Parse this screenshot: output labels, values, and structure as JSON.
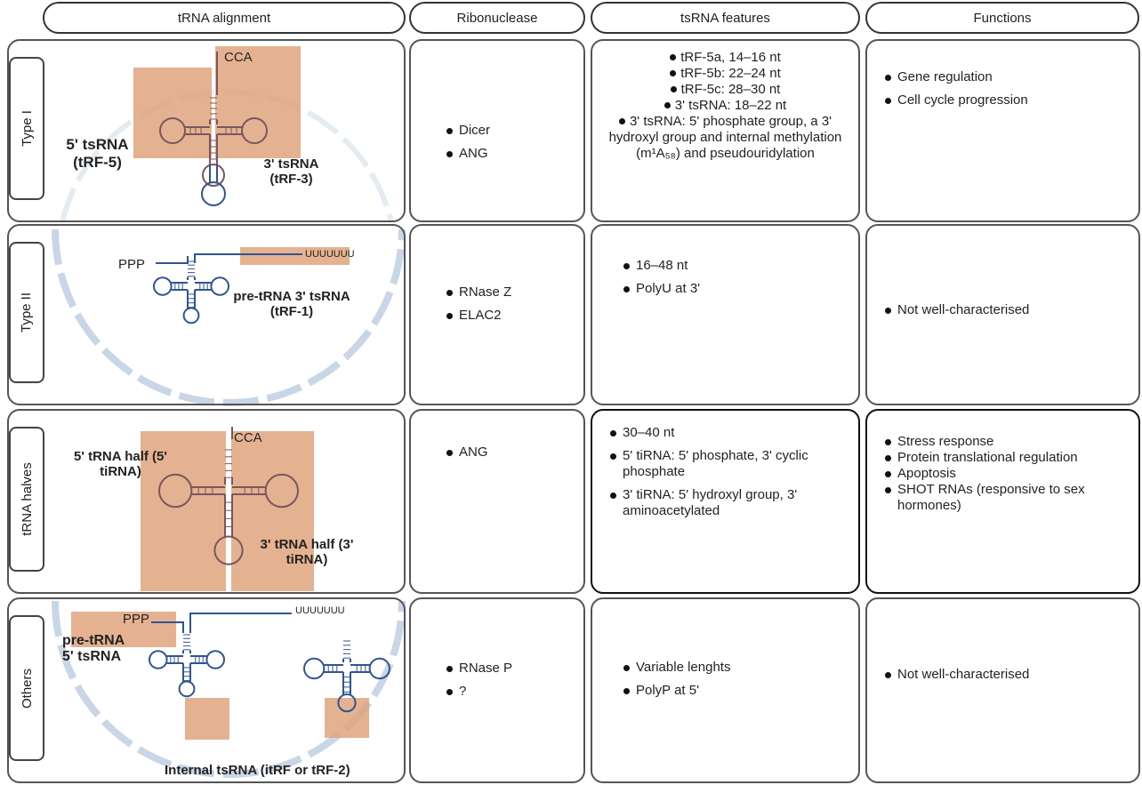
{
  "headers": [
    "tRNA alignment",
    "Ribonuclease",
    "tsRNA features",
    "Functions"
  ],
  "rows": [
    {
      "type": "Type I",
      "alignment_labels": [
        "CCA",
        "5' tsRNA (tRF-5)",
        "3' tsRNA (tRF-3)"
      ],
      "ribonucleases": [
        "Dicer",
        "ANG"
      ],
      "features": [
        "tRF-5a, 14–16 nt",
        "tRF-5b: 22–24 nt",
        "tRF-5c: 28–30 nt",
        "3' tsRNA: 18–22 nt",
        "3' tsRNA: 5' phosphate group, a 3' hydroxyl group and internal methylation (m¹A₅₈) and pseudouridylation"
      ],
      "functions": [
        "Gene regulation",
        "Cell cycle progression"
      ]
    },
    {
      "type": "Type II",
      "alignment_labels": [
        "PPP",
        "UUUUUUU",
        "pre-tRNA 3' tsRNA (tRF-1)"
      ],
      "ribonucleases": [
        "RNase Z",
        "ELAC2"
      ],
      "features": [
        "16–48 nt",
        "PolyU at 3'"
      ],
      "functions": [
        "Not well-characterised"
      ]
    },
    {
      "type": "tRNA halves",
      "alignment_labels": [
        "CCA",
        "5' tRNA half (5' tiRNA)",
        "3' tRNA half (3' tiRNA)"
      ],
      "ribonucleases": [
        "ANG"
      ],
      "features": [
        "30–40 nt",
        "5' tiRNA: 5' phosphate, 3' cyclic phosphate",
        "3' tiRNA: 5' hydroxyl group, 3' aminoacetylated"
      ],
      "functions": [
        "Stress response",
        "Protein translational regulation",
        "Apoptosis",
        "SHOT RNAs (responsive to sex hormones)"
      ]
    },
    {
      "type": "Others",
      "alignment_labels": [
        "PPP",
        "UUUUUUU",
        "pre-tRNA 5' tsRNA",
        "Internal tsRNA (itRF or tRF-2)"
      ],
      "ribonucleases": [
        "RNase P",
        "?"
      ],
      "features": [
        "Variable lenghts",
        "PolyP at 5'"
      ],
      "functions": [
        "Not well-characterised"
      ]
    }
  ]
}
